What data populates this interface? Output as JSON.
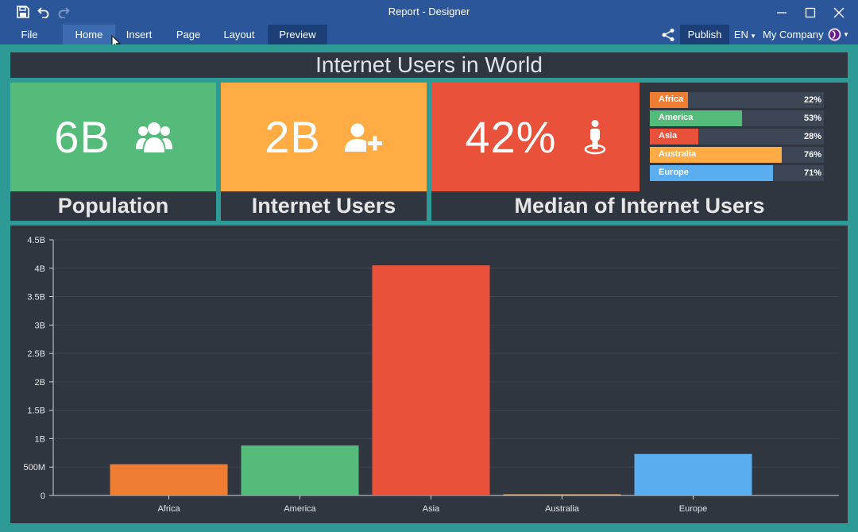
{
  "window": {
    "title": "Report - Designer"
  },
  "menu": {
    "file": "File",
    "tabs": [
      "Home",
      "Insert",
      "Page",
      "Layout",
      "Preview"
    ],
    "publish": "Publish",
    "language": "EN",
    "company": "My Company"
  },
  "dashboard": {
    "title": "Internet Users in World",
    "cards": {
      "population": {
        "value": "6B",
        "label": "Population",
        "color": "#55bb7b",
        "icon": "users-icon"
      },
      "internet_users": {
        "value": "2B",
        "label": "Internet Users",
        "color": "#ffac45",
        "icon": "user-plus-icon"
      },
      "median": {
        "value": "42%",
        "label": "Median of Internet Users",
        "color": "#e9513a",
        "icon": "person-pin-icon"
      }
    },
    "regions": [
      {
        "name": "Africa",
        "pct_label": "22%",
        "value": 22,
        "color": "#ee7d31"
      },
      {
        "name": "America",
        "pct_label": "53%",
        "value": 53,
        "color": "#55bb7b"
      },
      {
        "name": "Asia",
        "pct_label": "28%",
        "value": 28,
        "color": "#e9513a"
      },
      {
        "name": "Australia",
        "pct_label": "76%",
        "value": 76,
        "color": "#ffac45"
      },
      {
        "name": "Europe",
        "pct_label": "71%",
        "value": 71,
        "color": "#5aaeef"
      }
    ]
  },
  "chart_data": {
    "type": "bar",
    "categories": [
      "Africa",
      "America",
      "Asia",
      "Australia",
      "Europe"
    ],
    "values": [
      550000000,
      880000000,
      4050000000,
      20000000,
      730000000
    ],
    "colors": [
      "#ee7d31",
      "#55bb7b",
      "#e9513a",
      "#ffac45",
      "#5aaeef"
    ],
    "ylim": [
      0,
      4500000000
    ],
    "yticks": [
      {
        "v": 0,
        "label": "0"
      },
      {
        "v": 500000000,
        "label": "500M"
      },
      {
        "v": 1000000000,
        "label": "1B"
      },
      {
        "v": 1500000000,
        "label": "1.5B"
      },
      {
        "v": 2000000000,
        "label": "2B"
      },
      {
        "v": 2500000000,
        "label": "2.5B"
      },
      {
        "v": 3000000000,
        "label": "3B"
      },
      {
        "v": 3500000000,
        "label": "3.5B"
      },
      {
        "v": 4000000000,
        "label": "4B"
      },
      {
        "v": 4500000000,
        "label": "4.5B"
      }
    ],
    "grid": true
  }
}
